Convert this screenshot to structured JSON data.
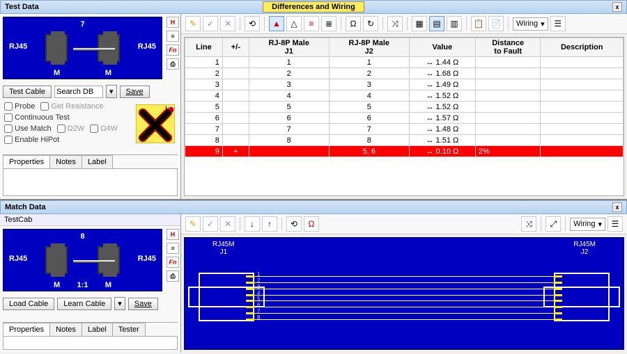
{
  "panels": {
    "testData": {
      "title": "Test Data",
      "closeIcon": "x"
    },
    "matchData": {
      "title": "Match Data",
      "closeIcon": "x"
    },
    "diffWiring": {
      "title": "Differences and Wiring"
    }
  },
  "testDiagram": {
    "leftType": "RJ45",
    "rightType": "RJ45",
    "topLabel": "7",
    "leftM": "M",
    "rightM": "M",
    "buttons": {
      "testCable": "Test Cable",
      "searchDb": "Search DB",
      "save": "Save"
    },
    "checks": {
      "probe": "Probe",
      "getRes": "Get Resistance",
      "contTest": "Continuous Test",
      "useMatch": "Use Match",
      "o2w": "Ω2W",
      "o4w": "Ω4W",
      "enableHipot": "Enable HiPot"
    },
    "helpLabel": "Help",
    "tabs": [
      "Properties",
      "Notes",
      "Label"
    ]
  },
  "matchDiagram": {
    "cabName": "TestCab",
    "leftType": "RJ45",
    "rightType": "RJ45",
    "topLabel": "8",
    "ratio": "1:1",
    "leftM": "M",
    "rightM": "M",
    "buttons": {
      "loadCable": "Load Cable",
      "learnCable": "Learn Cable",
      "save": "Save"
    },
    "tabs": [
      "Properties",
      "Notes",
      "Label",
      "Tester"
    ]
  },
  "sideIcons": {
    "h": "H",
    "lines": "≡",
    "fn": "Fn",
    "print": "⎙"
  },
  "diffTable": {
    "headers": {
      "line": "Line",
      "pm": "+/-",
      "j1": "RJ-8P Male\nJ1",
      "j2": "RJ-8P Male\nJ2",
      "value": "Value",
      "dist": "Distance\nto Fault",
      "desc": "Description"
    },
    "rows": [
      {
        "line": "1",
        "pm": "",
        "j1": "1",
        "j2": "1",
        "val": "↔ 1.44 Ω",
        "dist": "",
        "desc": ""
      },
      {
        "line": "2",
        "pm": "",
        "j1": "2",
        "j2": "2",
        "val": "↔ 1.68 Ω",
        "dist": "",
        "desc": ""
      },
      {
        "line": "3",
        "pm": "",
        "j1": "3",
        "j2": "3",
        "val": "↔ 1.49 Ω",
        "dist": "",
        "desc": ""
      },
      {
        "line": "4",
        "pm": "",
        "j1": "4",
        "j2": "4",
        "val": "↔ 1.52 Ω",
        "dist": "",
        "desc": ""
      },
      {
        "line": "5",
        "pm": "",
        "j1": "5",
        "j2": "5",
        "val": "↔ 1.52 Ω",
        "dist": "",
        "desc": ""
      },
      {
        "line": "6",
        "pm": "",
        "j1": "6",
        "j2": "6",
        "val": "↔ 1.57 Ω",
        "dist": "",
        "desc": ""
      },
      {
        "line": "7",
        "pm": "",
        "j1": "7",
        "j2": "7",
        "val": "↔ 1.48 Ω",
        "dist": "",
        "desc": ""
      },
      {
        "line": "8",
        "pm": "",
        "j1": "8",
        "j2": "8",
        "val": "↔ 1.51 Ω",
        "dist": "",
        "desc": ""
      },
      {
        "line": "9",
        "pm": "+",
        "j1": "",
        "j2": "5, 6",
        "val": "↔ 0.10 Ω",
        "dist": "2%",
        "desc": "",
        "err": true
      }
    ]
  },
  "toolbars": {
    "top": {
      "pencil": "✎",
      "check": "✓",
      "x": "✕",
      "sync": "⟲",
      "tri": "△",
      "triF": "▲",
      "eq": "≡",
      "eqR": "≣",
      "omega": "Ω",
      "omegaR": "↻",
      "xover": "⤨",
      "grid1": "▦",
      "grid2": "▤",
      "grid3": "▥",
      "copy": "📋",
      "paste": "📄",
      "wiringDd": "Wiring",
      "menu": "☰"
    },
    "bottom": {
      "pencil": "✎",
      "check": "✓",
      "x": "✕",
      "down": "↓",
      "up": "↑",
      "sync": "⟲",
      "omega": "Ω",
      "xover": "⤨",
      "expand": "⤢",
      "wiringDd": "Wiring",
      "menu": "☰"
    }
  },
  "wiring": {
    "j1Label": "RJ45M\nJ1",
    "j2Label": "RJ45M\nJ2",
    "pinCount": 8,
    "colors": {
      "bg": "#0000c0",
      "outline": "#ffffff",
      "pin": "#ffee00",
      "wire": "#ffffff"
    }
  }
}
